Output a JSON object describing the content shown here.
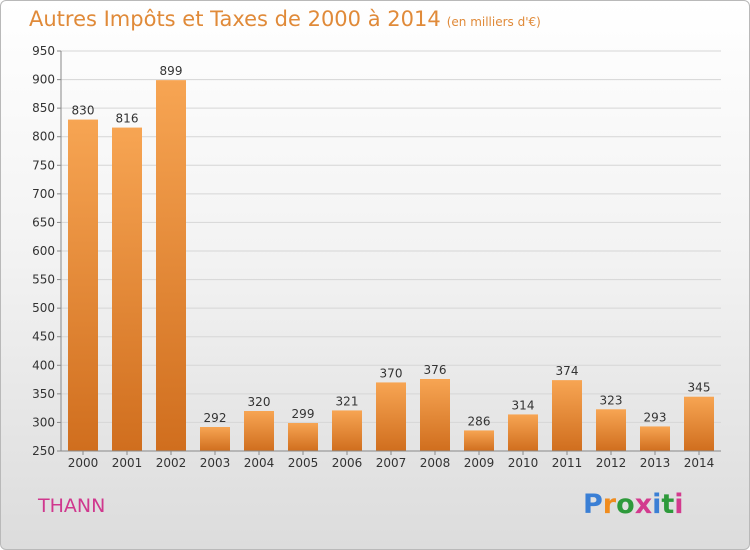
{
  "header": {
    "title": "Autres Impôts et Taxes de 2000 à 2014",
    "unit": "(en milliers d'€)"
  },
  "footer": {
    "city": "THANN",
    "logo_letters": [
      "P",
      "r",
      "o",
      "x",
      "i",
      "t",
      "i"
    ],
    "logo_colors": [
      "#3a7fd5",
      "#f08c1e",
      "#2e9a3b",
      "#d33a8e",
      "#3a7fd5",
      "#2e9a3b",
      "#d33a8e"
    ]
  },
  "chart_data": {
    "type": "bar",
    "title": "Autres Impôts et Taxes de 2000 à 2014",
    "categories": [
      "2000",
      "2001",
      "2002",
      "2003",
      "2004",
      "2005",
      "2006",
      "2007",
      "2008",
      "2009",
      "2010",
      "2011",
      "2012",
      "2013",
      "2014"
    ],
    "values": [
      830,
      816,
      899,
      292,
      320,
      299,
      321,
      370,
      376,
      286,
      314,
      374,
      323,
      293,
      345
    ],
    "ylim": [
      250,
      950
    ],
    "yticks": [
      250,
      300,
      350,
      400,
      450,
      500,
      550,
      600,
      650,
      700,
      750,
      800,
      850,
      900,
      950
    ],
    "grid": true,
    "bar_color": "#f0923a"
  }
}
